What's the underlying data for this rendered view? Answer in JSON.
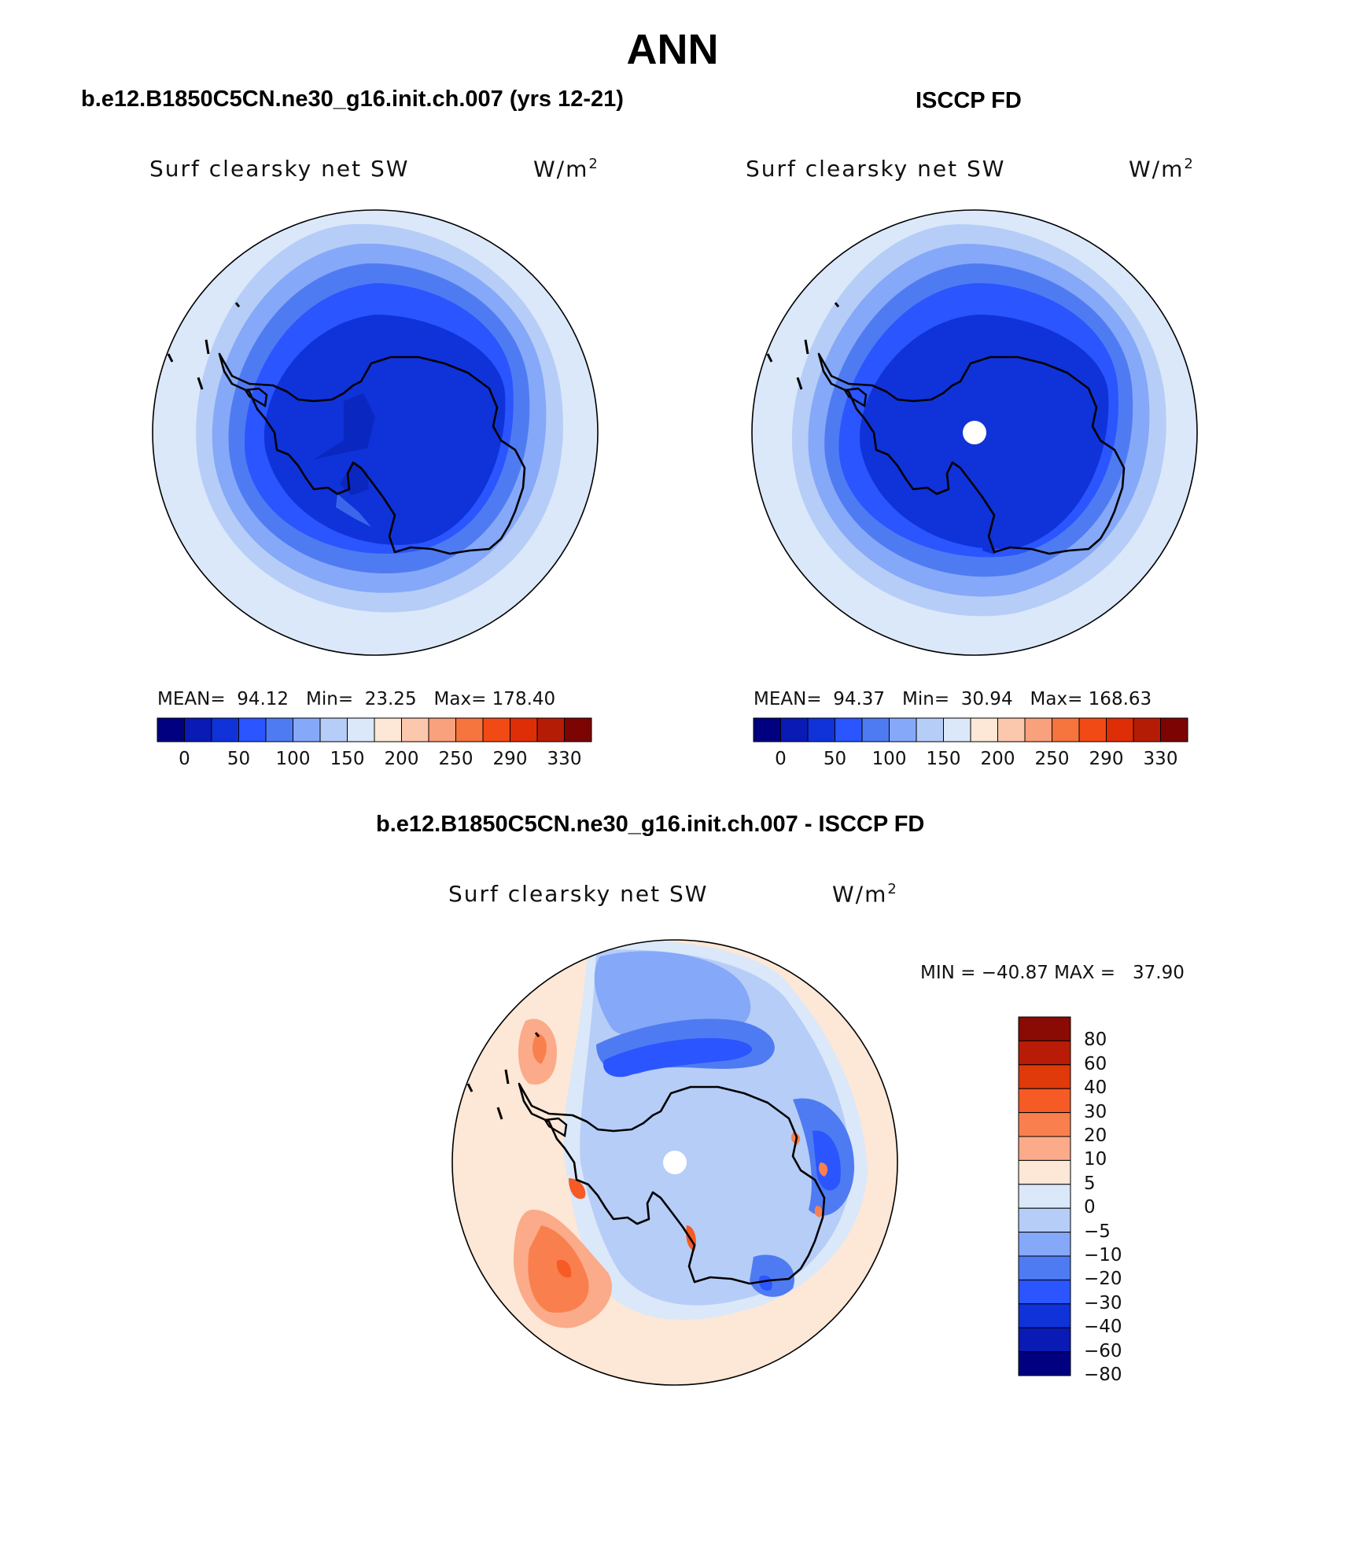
{
  "figure_title": "ANN",
  "panels": {
    "model": {
      "header": "b.e12.B1850C5CN.ne30_g16.init.ch.007 (yrs 12-21)",
      "variable": "Surf clearsky net SW",
      "units_base": "W/m",
      "units_exp": "2",
      "mean_label": "MEAN=",
      "mean_value": "94.12",
      "min_label": "Min=",
      "min_value": "23.25",
      "max_label": "Max=",
      "max_value": "178.40"
    },
    "obs": {
      "header": "ISCCP FD",
      "variable": "Surf clearsky net SW",
      "units_base": "W/m",
      "units_exp": "2",
      "mean_label": "MEAN=",
      "mean_value": "94.37",
      "min_label": "Min=",
      "min_value": "30.94",
      "max_label": "Max=",
      "max_value": "168.63"
    },
    "diff": {
      "header": "b.e12.B1850C5CN.ne30_g16.init.ch.007 - ISCCP FD",
      "variable": "Surf clearsky net SW",
      "units_base": "W/m",
      "units_exp": "2",
      "minmax_text": "MIN = −40.87 MAX =   37.90"
    }
  },
  "colorbar_main": {
    "tick_labels": [
      "0",
      "50",
      "100",
      "150",
      "200",
      "250",
      "290",
      "330"
    ],
    "colors": [
      "#000080",
      "#0a1ab4",
      "#0f33d9",
      "#2a55ff",
      "#4f7bf2",
      "#85a8f8",
      "#b6cdf7",
      "#dae8fa",
      "#fde7d6",
      "#fcc8ad",
      "#f9a07c",
      "#f6743e",
      "#f24a15",
      "#de2e08",
      "#b51c06",
      "#7c0504"
    ]
  },
  "colorbar_diff": {
    "tick_labels": [
      "80",
      "60",
      "40",
      "30",
      "20",
      "10",
      "5",
      "0",
      "−5",
      "−10",
      "−20",
      "−30",
      "−40",
      "−60",
      "−80"
    ],
    "colors": [
      "#8a0a04",
      "#b81c06",
      "#e0390a",
      "#f65a25",
      "#f9804e",
      "#fbab89",
      "#fde7d6",
      "#dae8fa",
      "#b6cdf7",
      "#85a8f8",
      "#4f7bf2",
      "#2a55ff",
      "#0f33d9",
      "#0a1ab4",
      "#000080"
    ]
  },
  "colors": {
    "ice_blue": "#0f33d9",
    "coast": "#000000"
  }
}
